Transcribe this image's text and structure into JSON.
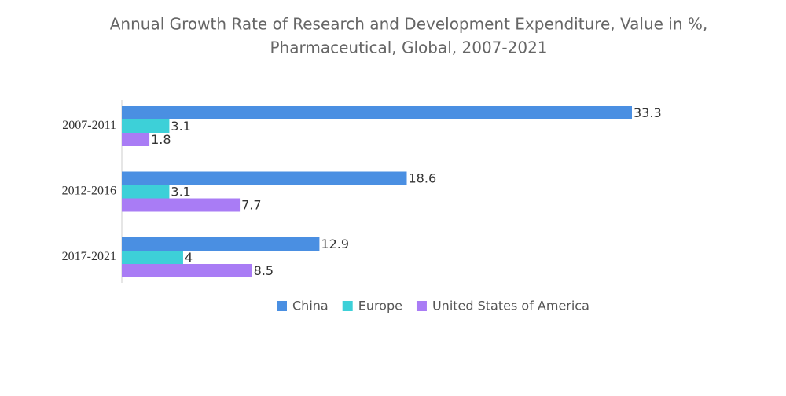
{
  "chart_data": {
    "type": "bar",
    "orientation": "horizontal",
    "title": [
      "Annual Growth Rate of Research and Development Expenditure, Value in %,",
      "Pharmaceutical, Global, 2007-2021"
    ],
    "categories": [
      "2007-2011",
      "2012-2016",
      "2017-2021"
    ],
    "series": [
      {
        "name": "China",
        "color": "#4a8fe2",
        "values": [
          33.3,
          18.6,
          12.9
        ]
      },
      {
        "name": "Europe",
        "color": "#3dd0d8",
        "values": [
          3.1,
          3.1,
          4
        ]
      },
      {
        "name": "United States of America",
        "color": "#a97cf5",
        "values": [
          1.8,
          7.7,
          8.5
        ]
      }
    ]
  }
}
